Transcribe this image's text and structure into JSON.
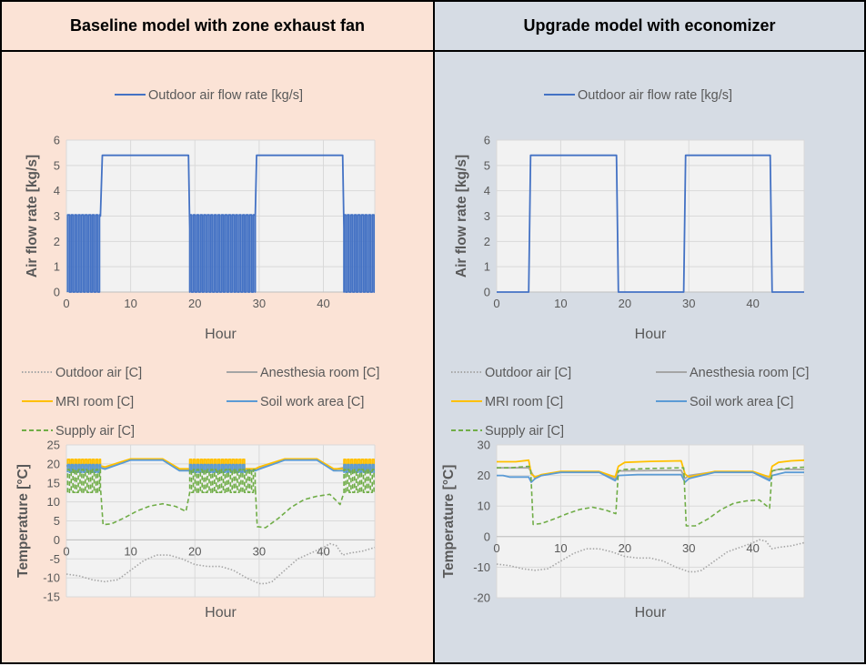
{
  "panels": {
    "left": {
      "title": "Baseline model with zone exhaust fan"
    },
    "right": {
      "title": "Upgrade model with economizer"
    }
  },
  "colors": {
    "outdoor_air_flow": "#4472c4",
    "outdoor_air": "#a6a6a6",
    "anesthesia_room": "#a5a5a5",
    "mri_room": "#ffc000",
    "soil_work_area": "#5b9bd5",
    "supply_air": "#70ad47",
    "plot_bg": "#f2f2f2",
    "grid": "#d9d9d9"
  },
  "chart_data": [
    {
      "id": "left-flow",
      "type": "line",
      "legend_position": "top",
      "xlabel": "Hour",
      "ylabel": "Air flow rate [kg/s]",
      "xlim": [
        0,
        48
      ],
      "ylim": [
        0,
        6
      ],
      "x_ticks": [
        0,
        10,
        20,
        30,
        40
      ],
      "y_ticks": [
        0,
        1,
        2,
        3,
        4,
        5,
        6
      ],
      "grid": true,
      "series": [
        {
          "key": "outdoor_air_flow",
          "name": "Outdoor air flow rate [kg/s]",
          "style": "solid",
          "segments": [
            {
              "kind": "oscillate",
              "x0": 0.2,
              "x1": 5.3,
              "low": 0,
              "high": 3.05,
              "period": 0.55
            },
            {
              "kind": "points",
              "x": [
                5.3,
                5.6,
                19,
                19.2
              ],
              "y": [
                3.0,
                5.4,
                5.4,
                2.5
              ]
            },
            {
              "kind": "oscillate",
              "x0": 19.2,
              "x1": 29.4,
              "low": 0,
              "high": 3.05,
              "period": 0.55
            },
            {
              "kind": "points",
              "x": [
                29.4,
                29.6,
                43,
                43.2
              ],
              "y": [
                3.0,
                5.4,
                5.4,
                2.5
              ]
            },
            {
              "kind": "oscillate",
              "x0": 43.2,
              "x1": 48,
              "low": 0,
              "high": 3.05,
              "period": 0.55
            }
          ]
        }
      ]
    },
    {
      "id": "right-flow",
      "type": "line",
      "legend_position": "top",
      "xlabel": "Hour",
      "ylabel": "Air flow rate [kg/s]",
      "xlim": [
        0,
        48
      ],
      "ylim": [
        0,
        6
      ],
      "x_ticks": [
        0,
        10,
        20,
        30,
        40
      ],
      "y_ticks": [
        0,
        1,
        2,
        3,
        4,
        5,
        6
      ],
      "grid": true,
      "series": [
        {
          "key": "outdoor_air_flow",
          "name": "Outdoor air flow rate [kg/s]",
          "style": "solid",
          "segments": [
            {
              "kind": "points",
              "x": [
                0,
                5,
                5.3,
                18.7,
                19,
                29.2,
                29.5,
                42.7,
                43,
                48
              ],
              "y": [
                0,
                0,
                5.4,
                5.4,
                0,
                0,
                5.4,
                5.4,
                0,
                0
              ]
            }
          ]
        }
      ]
    },
    {
      "id": "left-temp",
      "type": "line",
      "legend_position": "top",
      "xlabel": "Hour",
      "ylabel": "Temperature [°C]",
      "xlim": [
        0,
        48
      ],
      "ylim": [
        -15,
        25
      ],
      "x_ticks": [
        0,
        10,
        20,
        30,
        40
      ],
      "y_ticks": [
        -15,
        -10,
        -5,
        0,
        5,
        10,
        15,
        20,
        25
      ],
      "grid": true,
      "series": [
        {
          "key": "outdoor_air",
          "name": "Outdoor air [C]",
          "style": "dotted",
          "segments": [
            {
              "kind": "points",
              "x": [
                0,
                2,
                4,
                6,
                8,
                10,
                12,
                14,
                16,
                18,
                20,
                22,
                24,
                26,
                28,
                30,
                31,
                32,
                34,
                36,
                38,
                40,
                41,
                42,
                43,
                44,
                46,
                48
              ],
              "y": [
                -9,
                -9.5,
                -10.5,
                -11,
                -10.5,
                -8,
                -5.5,
                -4,
                -4,
                -5,
                -6.5,
                -7,
                -7,
                -8,
                -10,
                -11.5,
                -11.5,
                -11,
                -8,
                -5,
                -3.5,
                -2,
                -1,
                -1.5,
                -4,
                -3.5,
                -3,
                -2
              ]
            }
          ]
        },
        {
          "key": "anesthesia_room",
          "name": "Anesthesia room [C]",
          "style": "solid",
          "segments": [
            {
              "kind": "points",
              "x": [
                0,
                5.3,
                6,
                10,
                15,
                17.6,
                19,
                27.8,
                29.4,
                30,
                34,
                39,
                41.6,
                43,
                48
              ],
              "y": [
                19.5,
                19.5,
                19,
                21.2,
                21.2,
                18.5,
                18.5,
                18.5,
                18.5,
                19,
                21.2,
                21.2,
                18.5,
                19,
                19
              ]
            }
          ]
        },
        {
          "key": "mri_room",
          "name": "MRI room [C]",
          "style": "solid",
          "segments": [
            {
              "kind": "oscillate",
              "x0": 0.2,
              "x1": 5.3,
              "low": 18.2,
              "high": 21.2,
              "period": 0.55
            },
            {
              "kind": "points",
              "x": [
                5.3,
                6,
                10,
                15,
                17.6,
                19.2
              ],
              "y": [
                19.5,
                19.2,
                21.3,
                21.3,
                18.7,
                18.7
              ]
            },
            {
              "kind": "oscillate",
              "x0": 19.2,
              "x1": 27.8,
              "low": 18.2,
              "high": 21.2,
              "period": 0.55
            },
            {
              "kind": "points",
              "x": [
                27.8,
                29.4,
                30,
                34,
                39,
                41.6,
                43.2
              ],
              "y": [
                18.7,
                18.7,
                19.2,
                21.3,
                21.3,
                18.7,
                18.7
              ]
            },
            {
              "kind": "oscillate",
              "x0": 43.2,
              "x1": 48,
              "low": 18.2,
              "high": 21.2,
              "period": 0.55
            }
          ]
        },
        {
          "key": "soil_work_area",
          "name": "Soil work area [C]",
          "style": "solid",
          "segments": [
            {
              "kind": "oscillate",
              "x0": 0.2,
              "x1": 5.3,
              "low": 17.8,
              "high": 19.8,
              "period": 0.55
            },
            {
              "kind": "points",
              "x": [
                5.3,
                6,
                10,
                15,
                17.6,
                19.2
              ],
              "y": [
                19,
                18.6,
                21,
                21,
                18.2,
                18.2
              ]
            },
            {
              "kind": "oscillate",
              "x0": 19.2,
              "x1": 27.8,
              "low": 17.8,
              "high": 19.8,
              "period": 0.55
            },
            {
              "kind": "points",
              "x": [
                27.8,
                29.4,
                30,
                34,
                39,
                41.6,
                43.2
              ],
              "y": [
                18.2,
                18.2,
                18.6,
                21,
                21,
                18.2,
                18.2
              ]
            },
            {
              "kind": "oscillate",
              "x0": 43.2,
              "x1": 48,
              "low": 17.8,
              "high": 19.8,
              "period": 0.55
            }
          ]
        },
        {
          "key": "supply_air",
          "name": "Supply air [C]",
          "style": "dashed",
          "segments": [
            {
              "kind": "oscillate",
              "x0": 0.2,
              "x1": 5.3,
              "low": 12.5,
              "high": 18.5,
              "period": 0.55
            },
            {
              "kind": "points",
              "x": [
                5.3,
                5.7,
                7,
                9,
                11,
                13,
                15,
                17,
                18.6,
                19.2
              ],
              "y": [
                14,
                4,
                4.2,
                5.8,
                7.6,
                8.9,
                9.5,
                8.8,
                7.5,
                12.5
              ]
            },
            {
              "kind": "oscillate",
              "x0": 19.2,
              "x1": 29.4,
              "low": 12.5,
              "high": 18.5,
              "period": 0.55
            },
            {
              "kind": "points",
              "x": [
                29.4,
                29.7,
                31,
                33,
                35,
                37,
                39,
                41,
                42.6,
                43.2
              ],
              "y": [
                14,
                3.5,
                3.2,
                5.7,
                8.6,
                10.6,
                11.5,
                12,
                9.3,
                12.5
              ]
            },
            {
              "kind": "oscillate",
              "x0": 43.2,
              "x1": 48,
              "low": 12.5,
              "high": 18.5,
              "period": 0.55
            }
          ]
        }
      ]
    },
    {
      "id": "right-temp",
      "type": "line",
      "legend_position": "top",
      "xlabel": "Hour",
      "ylabel": "Temperature [°C]",
      "xlim": [
        0,
        48
      ],
      "ylim": [
        -20,
        30
      ],
      "x_ticks": [
        0,
        10,
        20,
        30,
        40
      ],
      "y_ticks": [
        -20,
        -10,
        0,
        10,
        20,
        30
      ],
      "grid": true,
      "series": [
        {
          "key": "outdoor_air",
          "name": "Outdoor air [C]",
          "style": "dotted",
          "segments": [
            {
              "kind": "points",
              "x": [
                0,
                2,
                4,
                6,
                8,
                10,
                12,
                14,
                16,
                18,
                20,
                22,
                24,
                26,
                28,
                30,
                31,
                32,
                34,
                36,
                38,
                40,
                41,
                42,
                43,
                44,
                46,
                48
              ],
              "y": [
                -9,
                -9.5,
                -10.5,
                -11,
                -10.5,
                -8,
                -5.5,
                -4,
                -4,
                -5,
                -6.5,
                -7,
                -7,
                -8,
                -10,
                -11.5,
                -11.5,
                -11,
                -8,
                -5,
                -3.5,
                -2,
                -1,
                -1.5,
                -4,
                -3.5,
                -3,
                -2
              ]
            }
          ]
        },
        {
          "key": "anesthesia_room",
          "name": "Anesthesia room [C]",
          "style": "solid",
          "segments": [
            {
              "kind": "points",
              "x": [
                0,
                5,
                6,
                7,
                10,
                16,
                18.5,
                19,
                28.8,
                29.4,
                30,
                34,
                40,
                42.6,
                43,
                44,
                48
              ],
              "y": [
                22.5,
                22.5,
                19,
                20,
                21.2,
                21.2,
                18.8,
                21.5,
                21.7,
                19,
                20,
                21.2,
                21.2,
                18.8,
                21.5,
                22,
                22
              ]
            }
          ]
        },
        {
          "key": "mri_room",
          "name": "MRI room [C]",
          "style": "solid",
          "segments": [
            {
              "kind": "points",
              "x": [
                0,
                3,
                5,
                5.4,
                6,
                7,
                10,
                16,
                18.5,
                19,
                20,
                24,
                28.8,
                29.4,
                30,
                34,
                40,
                42.6,
                43,
                44,
                46,
                48
              ],
              "y": [
                24.5,
                24.5,
                25,
                20.5,
                19.5,
                20.3,
                21.3,
                21.3,
                19.5,
                23,
                24.3,
                24.6,
                24.8,
                20.5,
                19.5,
                21.3,
                21.3,
                19.5,
                23,
                24.3,
                24.8,
                25
              ]
            }
          ]
        },
        {
          "key": "soil_work_area",
          "name": "Soil work area [C]",
          "style": "solid",
          "segments": [
            {
              "kind": "points",
              "x": [
                0,
                1,
                2,
                5,
                5.4,
                6,
                7,
                10,
                16,
                18.5,
                19,
                22,
                28.8,
                29.4,
                30,
                34,
                40,
                42.6,
                43,
                45,
                48
              ],
              "y": [
                20,
                20,
                19.5,
                19.5,
                17.8,
                19,
                20,
                21,
                21,
                18.3,
                20,
                20.3,
                20.3,
                17.8,
                19,
                21,
                21,
                18.3,
                20,
                21,
                21
              ]
            }
          ]
        },
        {
          "key": "supply_air",
          "name": "Supply air [C]",
          "style": "dashed",
          "segments": [
            {
              "kind": "points",
              "x": [
                0,
                2,
                5,
                5.3,
                5.7,
                7,
                9,
                11,
                13,
                15,
                17,
                18.6,
                19,
                20,
                24,
                28.8,
                29.2,
                29.6,
                31,
                33,
                35,
                37,
                39,
                41,
                42.6,
                43,
                44,
                46,
                48
              ],
              "y": [
                22.5,
                22.5,
                23,
                22.5,
                4,
                4.3,
                5.8,
                7.5,
                8.9,
                9.6,
                8.7,
                7.5,
                21.5,
                22,
                22.3,
                22.5,
                22.5,
                3.5,
                3.5,
                5.8,
                8.8,
                10.9,
                11.7,
                12,
                9.3,
                21.5,
                22,
                22.5,
                22.7
              ]
            }
          ]
        }
      ]
    }
  ]
}
